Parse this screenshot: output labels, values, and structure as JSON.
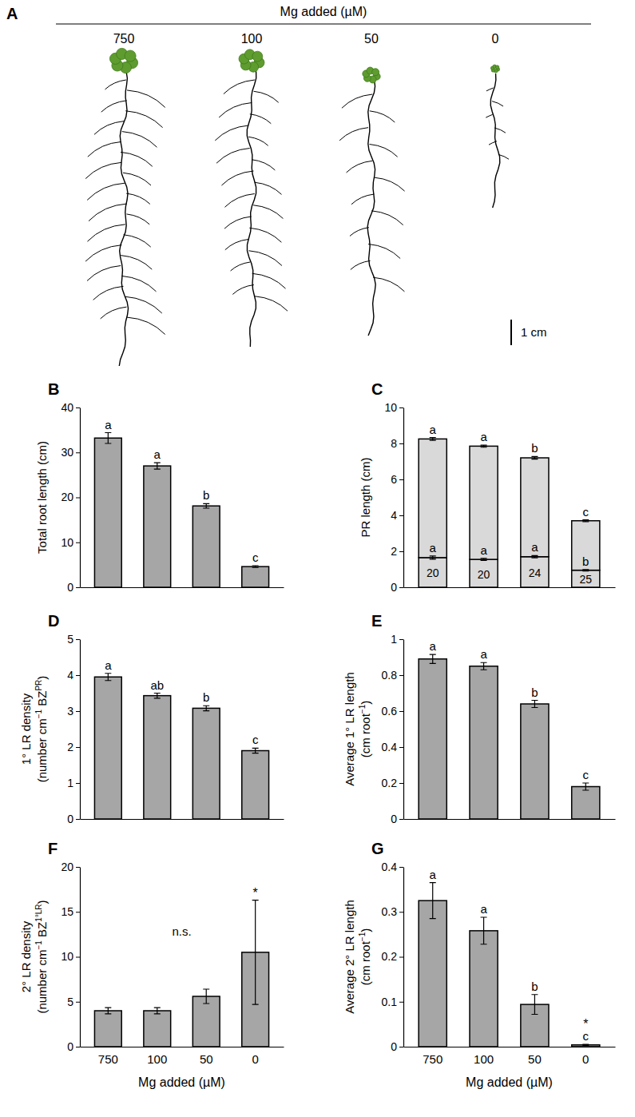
{
  "panel_a": {
    "panel": "A",
    "title": "Mg added (µM)",
    "labels": [
      "750",
      "100",
      "50",
      "0"
    ],
    "scale_bar": "1 cm"
  },
  "chart_data": [
    {
      "type": "bar",
      "panel": "B",
      "categories": [
        "750",
        "100",
        "50",
        "0"
      ],
      "values": [
        33.2,
        27.0,
        18.1,
        4.6
      ],
      "errors": [
        1.2,
        0.7,
        0.5,
        0.2
      ],
      "letters": [
        "a",
        "a",
        "b",
        "c"
      ],
      "color": "#a6a6a6",
      "ylabel": [
        [
          "Total root length (cm)"
        ]
      ],
      "ylim": [
        0,
        40
      ],
      "yticks": [
        0,
        10,
        20,
        30,
        40
      ],
      "tick_labels": "y"
    },
    {
      "type": "bar",
      "panel": "C",
      "stacked": true,
      "categories": [
        "750",
        "100",
        "50",
        "0"
      ],
      "series": [
        {
          "color": "#d9d9d9",
          "values": [
            1.65,
            1.55,
            1.7,
            0.95
          ],
          "errors": [
            0.09,
            0.06,
            0.06,
            0.04
          ],
          "letters": [
            "a",
            "a",
            "a",
            "b"
          ],
          "counts": [
            20,
            20,
            24,
            25
          ]
        },
        {
          "color": "#d9d9d9",
          "values": [
            6.6,
            6.3,
            5.5,
            2.75
          ],
          "errors": [
            0.08,
            0.06,
            0.07,
            0.05
          ],
          "letters": [
            "a",
            "a",
            "b",
            "c"
          ]
        }
      ],
      "ylabel": [
        [
          "PR length (cm)"
        ]
      ],
      "ylim": [
        0,
        10
      ],
      "yticks": [
        0,
        2,
        4,
        6,
        8,
        10
      ],
      "tick_labels": "y"
    },
    {
      "type": "bar",
      "panel": "D",
      "categories": [
        "750",
        "100",
        "50",
        "0"
      ],
      "values": [
        3.95,
        3.43,
        3.08,
        1.9
      ],
      "errors": [
        0.1,
        0.07,
        0.07,
        0.07
      ],
      "letters": [
        "a",
        "ab",
        "b",
        "c"
      ],
      "color": "#a6a6a6",
      "ylabel": [
        [
          "1° LR density"
        ],
        [
          "(number cm",
          {
            "sup": "−1"
          },
          " BZ",
          {
            "sup": "PR"
          },
          ")"
        ]
      ],
      "ylim": [
        0,
        5
      ],
      "yticks": [
        0,
        1,
        2,
        3,
        4,
        5
      ],
      "tick_labels": "y"
    },
    {
      "type": "bar",
      "panel": "E",
      "categories": [
        "750",
        "100",
        "50",
        "0"
      ],
      "values": [
        0.89,
        0.85,
        0.64,
        0.18
      ],
      "errors": [
        0.025,
        0.02,
        0.02,
        0.02
      ],
      "letters": [
        "a",
        "a",
        "b",
        "c"
      ],
      "color": "#a6a6a6",
      "ylabel": [
        [
          "Average 1° LR length"
        ],
        [
          "(cm root",
          {
            "sup": "−1"
          },
          ")"
        ]
      ],
      "ylim": [
        0,
        1
      ],
      "yticks": [
        0,
        0.2,
        0.4,
        0.6,
        0.8,
        1
      ],
      "tick_labels": "y"
    },
    {
      "type": "bar",
      "panel": "F",
      "categories": [
        "750",
        "100",
        "50",
        "0"
      ],
      "values": [
        4.0,
        4.0,
        5.6,
        10.5
      ],
      "errors": [
        0.35,
        0.35,
        0.8,
        5.8
      ],
      "significance": [
        null,
        null,
        null,
        "*"
      ],
      "annotation": "n.s.",
      "color": "#a6a6a6",
      "ylabel": [
        [
          "2° LR density"
        ],
        [
          "(number cm",
          {
            "sup": "−1"
          },
          " BZ",
          {
            "sup": "1°LR"
          },
          ")"
        ]
      ],
      "xlabel": "Mg added (µM)",
      "ylim": [
        0,
        20
      ],
      "yticks": [
        0,
        5,
        10,
        15,
        20
      ]
    },
    {
      "type": "bar",
      "panel": "G",
      "categories": [
        "750",
        "100",
        "50",
        "0"
      ],
      "values": [
        0.325,
        0.258,
        0.094,
        0.004
      ],
      "errors": [
        0.04,
        0.03,
        0.022,
        0.001
      ],
      "letters": [
        "a",
        "a",
        "b",
        "c"
      ],
      "significance": [
        null,
        null,
        null,
        "*"
      ],
      "color": "#a6a6a6",
      "ylabel": [
        [
          "Average 2° LR length"
        ],
        [
          "(cm root",
          {
            "sup": "−1"
          },
          ")"
        ]
      ],
      "xlabel": "Mg added (µM)",
      "ylim": [
        0,
        0.4
      ],
      "yticks": [
        0,
        0.1,
        0.2,
        0.3,
        0.4
      ]
    }
  ]
}
